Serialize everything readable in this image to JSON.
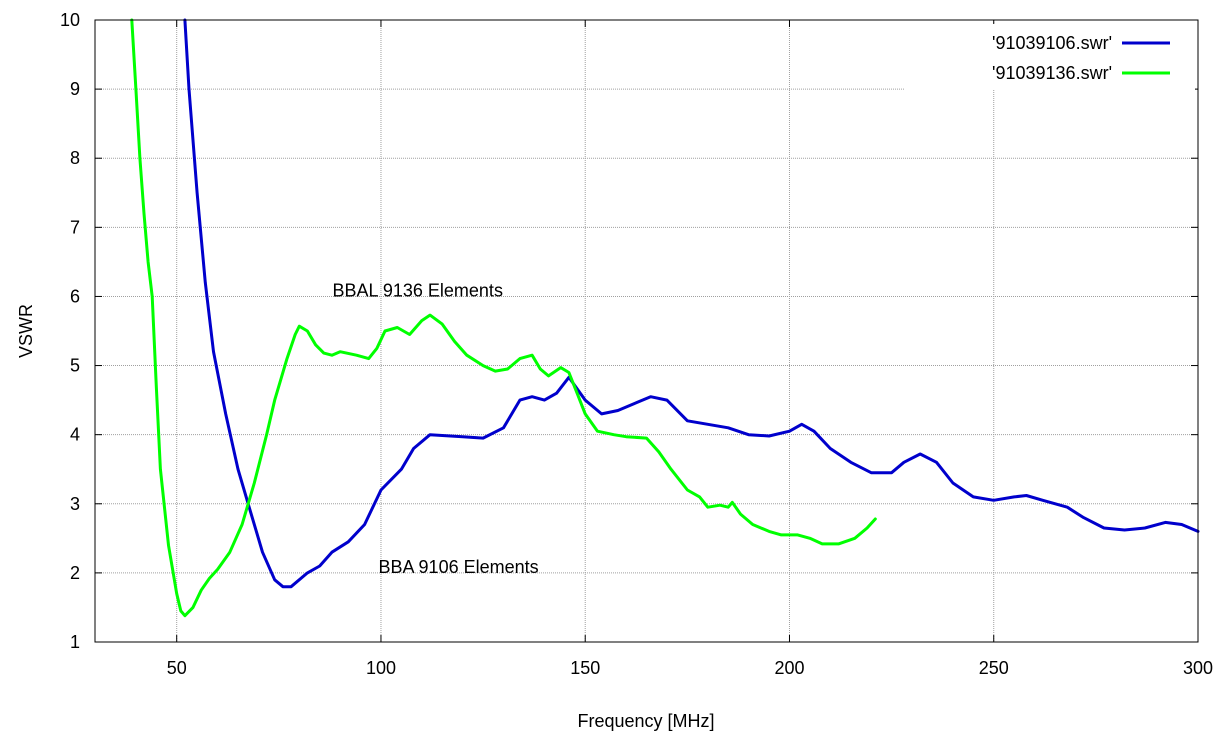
{
  "chart_data": {
    "type": "line",
    "xlabel": "Frequency [MHz]",
    "ylabel": "VSWR",
    "xlim": [
      30,
      300
    ],
    "ylim": [
      1,
      10
    ],
    "xticks": [
      50,
      100,
      150,
      200,
      250,
      300
    ],
    "yticks": [
      1,
      2,
      3,
      4,
      5,
      6,
      7,
      8,
      9,
      10
    ],
    "grid": true,
    "legend_position": "top-right",
    "series": [
      {
        "name": "'91039106.swr'",
        "color": "#0000cc",
        "points": [
          [
            52,
            10.0
          ],
          [
            53,
            9.0
          ],
          [
            55,
            7.5
          ],
          [
            57,
            6.2
          ],
          [
            59,
            5.2
          ],
          [
            62,
            4.3
          ],
          [
            65,
            3.5
          ],
          [
            68,
            2.9
          ],
          [
            71,
            2.3
          ],
          [
            74,
            1.9
          ],
          [
            76,
            1.8
          ],
          [
            78,
            1.8
          ],
          [
            82,
            2.0
          ],
          [
            85,
            2.1
          ],
          [
            88,
            2.3
          ],
          [
            92,
            2.45
          ],
          [
            96,
            2.7
          ],
          [
            100,
            3.2
          ],
          [
            105,
            3.5
          ],
          [
            108,
            3.8
          ],
          [
            112,
            4.0
          ],
          [
            120,
            3.97
          ],
          [
            125,
            3.95
          ],
          [
            130,
            4.1
          ],
          [
            134,
            4.5
          ],
          [
            137,
            4.55
          ],
          [
            140,
            4.5
          ],
          [
            143,
            4.6
          ],
          [
            146,
            4.83
          ],
          [
            150,
            4.5
          ],
          [
            154,
            4.3
          ],
          [
            158,
            4.35
          ],
          [
            162,
            4.45
          ],
          [
            166,
            4.55
          ],
          [
            170,
            4.5
          ],
          [
            175,
            4.2
          ],
          [
            180,
            4.15
          ],
          [
            185,
            4.1
          ],
          [
            190,
            4.0
          ],
          [
            195,
            3.98
          ],
          [
            200,
            4.05
          ],
          [
            203,
            4.15
          ],
          [
            206,
            4.05
          ],
          [
            210,
            3.8
          ],
          [
            215,
            3.6
          ],
          [
            220,
            3.45
          ],
          [
            225,
            3.45
          ],
          [
            228,
            3.6
          ],
          [
            232,
            3.72
          ],
          [
            236,
            3.6
          ],
          [
            240,
            3.3
          ],
          [
            245,
            3.1
          ],
          [
            250,
            3.05
          ],
          [
            255,
            3.1
          ],
          [
            258,
            3.12
          ],
          [
            262,
            3.05
          ],
          [
            268,
            2.95
          ],
          [
            272,
            2.8
          ],
          [
            277,
            2.65
          ],
          [
            282,
            2.62
          ],
          [
            287,
            2.65
          ],
          [
            292,
            2.73
          ],
          [
            296,
            2.7
          ],
          [
            300,
            2.6
          ]
        ]
      },
      {
        "name": "'91039136.swr'",
        "color": "#00ff00",
        "points": [
          [
            39,
            10.0
          ],
          [
            40,
            9.0
          ],
          [
            41,
            8.0
          ],
          [
            42,
            7.2
          ],
          [
            43,
            6.5
          ],
          [
            44,
            6.0
          ],
          [
            45,
            4.7
          ],
          [
            46,
            3.5
          ],
          [
            48,
            2.4
          ],
          [
            50,
            1.7
          ],
          [
            51,
            1.45
          ],
          [
            52,
            1.38
          ],
          [
            54,
            1.5
          ],
          [
            56,
            1.75
          ],
          [
            58,
            1.92
          ],
          [
            60,
            2.05
          ],
          [
            63,
            2.3
          ],
          [
            66,
            2.7
          ],
          [
            69,
            3.3
          ],
          [
            72,
            4.0
          ],
          [
            74,
            4.5
          ],
          [
            77,
            5.1
          ],
          [
            79,
            5.45
          ],
          [
            80,
            5.57
          ],
          [
            82,
            5.5
          ],
          [
            84,
            5.3
          ],
          [
            86,
            5.18
          ],
          [
            88,
            5.15
          ],
          [
            90,
            5.2
          ],
          [
            94,
            5.15
          ],
          [
            97,
            5.1
          ],
          [
            99,
            5.25
          ],
          [
            101,
            5.5
          ],
          [
            104,
            5.55
          ],
          [
            107,
            5.45
          ],
          [
            110,
            5.65
          ],
          [
            112,
            5.73
          ],
          [
            115,
            5.6
          ],
          [
            118,
            5.35
          ],
          [
            121,
            5.15
          ],
          [
            125,
            5.0
          ],
          [
            128,
            4.92
          ],
          [
            131,
            4.95
          ],
          [
            134,
            5.1
          ],
          [
            137,
            5.15
          ],
          [
            139,
            4.95
          ],
          [
            141,
            4.85
          ],
          [
            144,
            4.97
          ],
          [
            146,
            4.9
          ],
          [
            148,
            4.6
          ],
          [
            150,
            4.3
          ],
          [
            153,
            4.05
          ],
          [
            157,
            4.0
          ],
          [
            160,
            3.97
          ],
          [
            165,
            3.95
          ],
          [
            168,
            3.75
          ],
          [
            171,
            3.5
          ],
          [
            175,
            3.2
          ],
          [
            178,
            3.1
          ],
          [
            180,
            2.95
          ],
          [
            183,
            2.98
          ],
          [
            185,
            2.95
          ],
          [
            186,
            3.02
          ],
          [
            188,
            2.85
          ],
          [
            191,
            2.7
          ],
          [
            195,
            2.6
          ],
          [
            198,
            2.55
          ],
          [
            202,
            2.55
          ],
          [
            205,
            2.5
          ],
          [
            208,
            2.42
          ],
          [
            212,
            2.42
          ],
          [
            216,
            2.5
          ],
          [
            219,
            2.65
          ],
          [
            221,
            2.78
          ]
        ]
      }
    ],
    "annotations": [
      {
        "text": "BBAL 9136 Elements",
        "x": 109,
        "y": 6.0
      },
      {
        "text": "BBA 9106 Elements",
        "x": 119,
        "y": 2.0
      }
    ]
  }
}
